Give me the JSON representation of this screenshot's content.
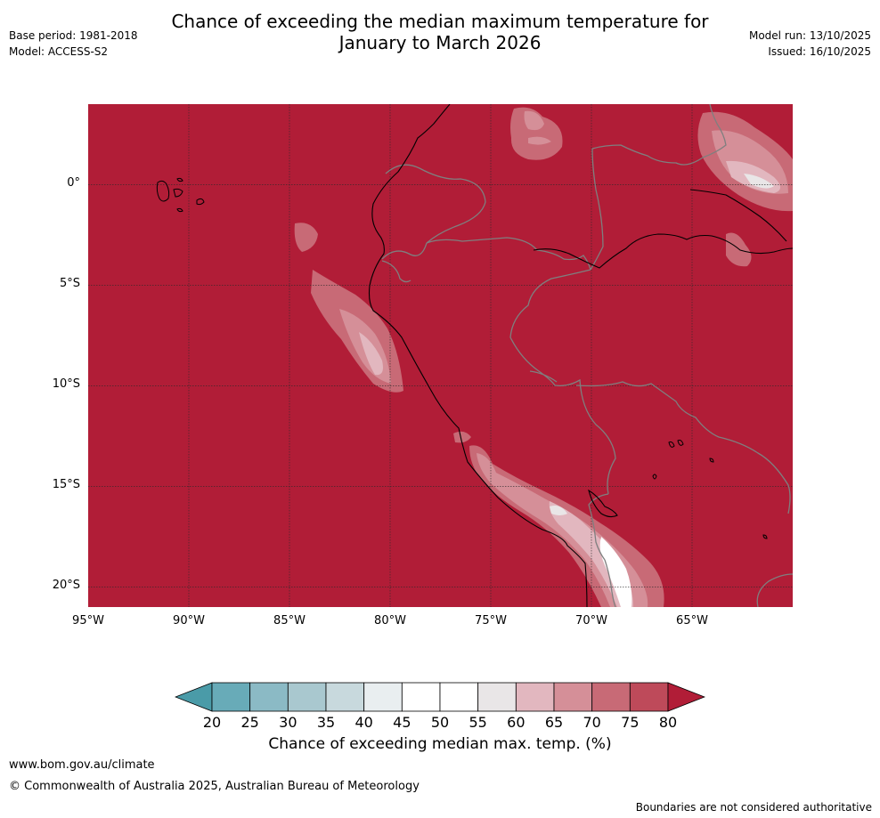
{
  "header": {
    "title_line1": "Chance of exceeding the median maximum temperature for",
    "title_line2": "January to March 2026",
    "base_period": "Base period: 1981-2018",
    "model": "Model: ACCESS-S2",
    "model_run": "Model run: 13/10/2025",
    "issued": "Issued: 16/10/2025"
  },
  "map": {
    "lon_range_deg": [
      -95,
      -60
    ],
    "lat_range_deg": [
      -21,
      4
    ],
    "lat_labels": [
      "0°",
      "5°S",
      "10°S",
      "15°S",
      "20°S"
    ],
    "lat_values": [
      0,
      -5,
      -10,
      -15,
      -20
    ],
    "lon_labels": [
      "95°W",
      "90°W",
      "85°W",
      "80°W",
      "75°W",
      "70°W",
      "65°W"
    ],
    "lon_values": [
      -95,
      -90,
      -85,
      -80,
      -75,
      -70,
      -65
    ],
    "dominant_category": ">80%",
    "colors": {
      "background": "#b11d37",
      "gridline": "#2a2a2a",
      "coast": "#000000",
      "border": "#7f7f7f"
    }
  },
  "colorbar": {
    "title": "Chance of exceeding median max. temp. (%)",
    "tick_labels": [
      "20",
      "25",
      "30",
      "35",
      "40",
      "45",
      "50",
      "55",
      "60",
      "65",
      "70",
      "75",
      "80"
    ],
    "under_color": "#4a9ba8",
    "over_color": "#b11d37",
    "bin_colors": [
      "#68abb8",
      "#8bbac5",
      "#a9c8cf",
      "#c8d9dd",
      "#e9eef0",
      "#ffffff",
      "#ffffff",
      "#e9e6e7",
      "#e2b7bf",
      "#d58f98",
      "#c86a76",
      "#be4a5a"
    ]
  },
  "footer": {
    "url": "www.bom.gov.au/climate",
    "copyright": "© Commonwealth of Australia 2025, Australian Bureau of Meteorology",
    "note": "Boundaries are not considered authoritative"
  }
}
